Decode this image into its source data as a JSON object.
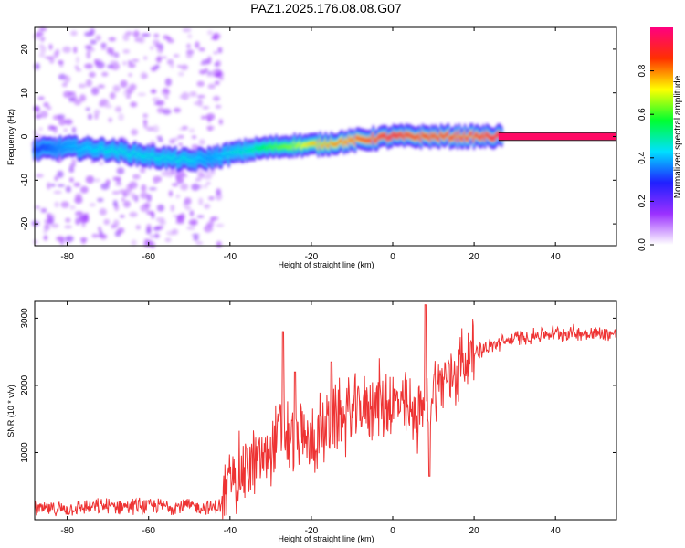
{
  "figure_title": "PAZ1.2025.176.08.08.G07",
  "chart_data": [
    {
      "type": "heatmap",
      "xlabel": "Height of straight line (km)",
      "ylabel": "Frequency (Hz)",
      "xlim": [
        -88,
        55
      ],
      "ylim": [
        -25,
        25
      ],
      "xticks": [
        -80,
        -60,
        -40,
        -20,
        0,
        20,
        40
      ],
      "yticks": [
        -20,
        -10,
        0,
        10,
        20
      ],
      "colorbar": {
        "label": "Normalized spectral amplitude",
        "range": [
          0.0,
          1.0
        ],
        "ticks": [
          0.0,
          0.2,
          0.4,
          0.6,
          0.8
        ],
        "tick_labels": [
          "0.0",
          "0.2",
          "0.4",
          "0.6",
          "0.8"
        ],
        "colormap": [
          "#ffffff",
          "#9b30ff",
          "#2020ff",
          "#00e0ff",
          "#00ff30",
          "#ffff00",
          "#ff3000",
          "#ff0080"
        ]
      },
      "ridge": {
        "x": [
          -88,
          -80,
          -70,
          -60,
          -50,
          -45,
          -40,
          -35,
          -30,
          -25,
          -20,
          -15,
          -10,
          -5,
          0,
          5,
          10,
          15,
          20,
          25,
          30,
          40,
          55
        ],
        "freq": [
          -3,
          -2.5,
          -3,
          -4.5,
          -5.5,
          -5,
          -4,
          -3,
          -2.5,
          -2,
          -2,
          -1.5,
          -1,
          -0.5,
          0,
          0,
          0,
          0,
          0,
          0,
          0,
          0,
          0
        ],
        "amplitude": [
          0.3,
          0.4,
          0.45,
          0.45,
          0.45,
          0.4,
          0.45,
          0.5,
          0.6,
          0.65,
          0.75,
          0.8,
          0.85,
          0.9,
          0.95,
          0.9,
          0.9,
          0.9,
          0.9,
          0.95,
          0.98,
          0.98,
          0.98
        ]
      },
      "background_scatter_x_range": [
        -88,
        -42
      ],
      "grid": false
    },
    {
      "type": "line",
      "xlabel": "Height of straight line (km)",
      "ylabel": "SNR (10 * v/v)",
      "xlim": [
        -88,
        55
      ],
      "ylim": [
        0,
        3250
      ],
      "xticks": [
        -80,
        -60,
        -40,
        -20,
        0,
        20,
        40
      ],
      "yticks": [
        1000,
        2000,
        3000
      ],
      "color": "#ee3333",
      "series": [
        {
          "x": [
            -88,
            -80,
            -70,
            -60,
            -50,
            -45,
            -42,
            -40,
            -35,
            -30,
            -28,
            -25,
            -20,
            -15,
            -10,
            -5,
            0,
            5,
            8,
            10,
            15,
            20,
            25,
            30,
            40,
            50,
            55
          ],
          "values": [
            150,
            170,
            200,
            210,
            200,
            180,
            200,
            600,
            800,
            1000,
            1300,
            1200,
            1150,
            1450,
            1600,
            1750,
            1750,
            1550,
            1700,
            1950,
            2200,
            2500,
            2600,
            2700,
            2780,
            2780,
            2760
          ]
        }
      ],
      "notable_points": {
        "spikes_x": [
          -27,
          -24,
          -15,
          8
        ],
        "spikes_y": [
          2800,
          2200,
          2350,
          3200
        ],
        "dip_x": 9,
        "dip_y": 650
      },
      "grid": false
    }
  ]
}
